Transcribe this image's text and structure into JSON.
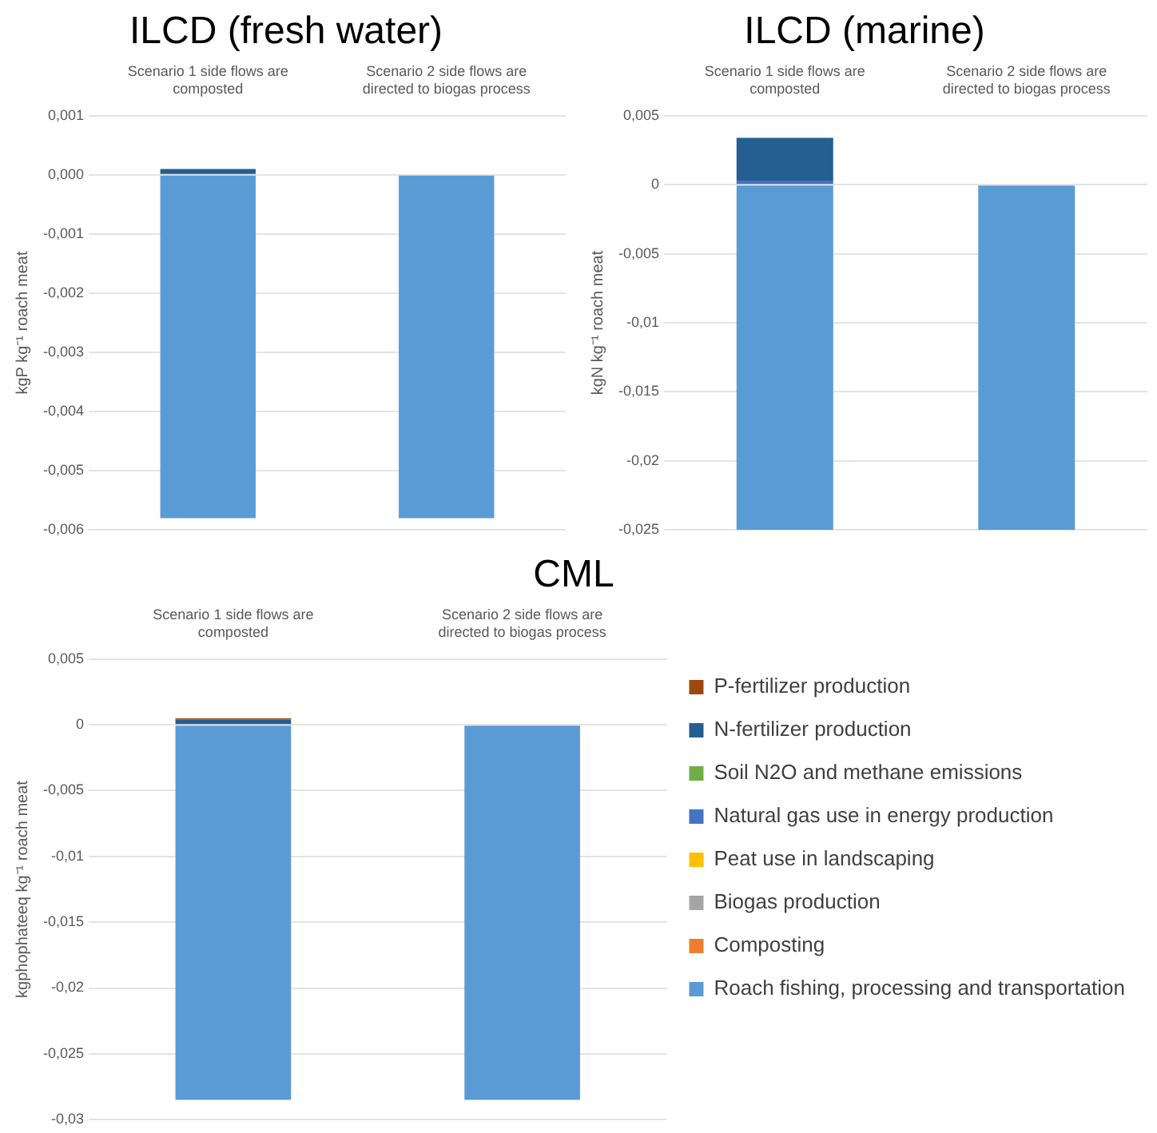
{
  "chart_data": [
    {
      "type": "bar",
      "title": "ILCD (fresh water)",
      "ylabel": "kgP kg⁻¹ roach meat",
      "stacked": true,
      "grid": "y",
      "legend": false,
      "categories": [
        "Scenario 1 side flows are composted",
        "Scenario 2 side flows are directed to biogas process"
      ],
      "ylim": [
        -0.006,
        0.001
      ],
      "yticks": [
        {
          "value": 0.001,
          "label": "0,001"
        },
        {
          "value": 0,
          "label": "0,000"
        },
        {
          "value": -0.001,
          "label": "-0,001"
        },
        {
          "value": -0.002,
          "label": "-0,002"
        },
        {
          "value": -0.003,
          "label": "-0,003"
        },
        {
          "value": -0.004,
          "label": "-0,004"
        },
        {
          "value": -0.005,
          "label": "-0,005"
        },
        {
          "value": -0.006,
          "label": "-0,006"
        }
      ],
      "series": [
        {
          "color": "#5b9bd5",
          "values": [
            -0.0058,
            -0.0058
          ]
        },
        {
          "color": "#ed7d31",
          "values": [
            0,
            0
          ]
        },
        {
          "color": "#a5a5a5",
          "values": [
            0,
            0
          ]
        },
        {
          "color": "#ffc000",
          "values": [
            0,
            0
          ]
        },
        {
          "color": "#4472c4",
          "values": [
            0,
            0
          ]
        },
        {
          "color": "#70ad47",
          "values": [
            0,
            0
          ]
        },
        {
          "color": "#255e91",
          "values": [
            0.0001,
            0
          ]
        },
        {
          "color": "#9e480e",
          "values": [
            0,
            0
          ]
        }
      ]
    },
    {
      "type": "bar",
      "title": "ILCD (marine)",
      "ylabel": "kgN kg⁻¹ roach meat",
      "stacked": true,
      "grid": "y",
      "legend": false,
      "categories": [
        "Scenario 1 side flows are composted",
        "Scenario 2 side flows are directed to biogas process"
      ],
      "ylim": [
        -0.025,
        0.005
      ],
      "yticks": [
        {
          "value": 0.005,
          "label": "0,005"
        },
        0,
        {
          "value": -0.005,
          "label": "-0,005"
        },
        {
          "value": -0.01,
          "label": "-0,01"
        },
        {
          "value": -0.015,
          "label": "-0,015"
        },
        {
          "value": -0.02,
          "label": "-0,02"
        },
        {
          "value": -0.025,
          "label": "-0,025"
        }
      ],
      "series": [
        {
          "color": "#5b9bd5",
          "values": [
            -0.025,
            -0.025
          ]
        },
        {
          "color": "#ed7d31",
          "values": [
            0,
            0
          ]
        },
        {
          "color": "#a5a5a5",
          "values": [
            0,
            0
          ]
        },
        {
          "color": "#ffc000",
          "values": [
            0,
            0
          ]
        },
        {
          "color": "#4472c4",
          "values": [
            0.0003,
            0
          ]
        },
        {
          "color": "#70ad47",
          "values": [
            0,
            0
          ]
        },
        {
          "color": "#255e91",
          "values": [
            0.0031,
            0
          ]
        },
        {
          "color": "#9e480e",
          "values": [
            0,
            0
          ]
        }
      ]
    },
    {
      "type": "bar",
      "title": "CML",
      "ylabel": "kgphophateeq kg⁻¹ roach meat",
      "stacked": true,
      "grid": "y",
      "legend": "right",
      "categories": [
        "Scenario 1 side flows are composted",
        "Scenario 2 side flows are directed to biogas process"
      ],
      "ylim": [
        -0.03,
        0.005
      ],
      "yticks": [
        {
          "value": 0.005,
          "label": "0,005"
        },
        0,
        {
          "value": -0.005,
          "label": "-0,005"
        },
        {
          "value": -0.01,
          "label": "-0,01"
        },
        {
          "value": -0.015,
          "label": "-0,015"
        },
        {
          "value": -0.02,
          "label": "-0,02"
        },
        {
          "value": -0.025,
          "label": "-0,025"
        },
        {
          "value": -0.03,
          "label": "-0,03"
        }
      ],
      "series": [
        {
          "name": "Roach fishing, processing and transportation",
          "color": "#5b9bd5",
          "values": [
            -0.0285,
            -0.0285
          ]
        },
        {
          "name": "Composting",
          "color": "#ed7d31",
          "values": [
            0,
            0
          ]
        },
        {
          "name": "Biogas production",
          "color": "#a5a5a5",
          "values": [
            0,
            0
          ]
        },
        {
          "name": "Peat use in landscaping",
          "color": "#ffc000",
          "values": [
            0,
            0
          ]
        },
        {
          "name": "Natural gas use in energy production",
          "color": "#4472c4",
          "values": [
            0,
            0
          ]
        },
        {
          "name": "Soil N2O and methane emissions",
          "color": "#70ad47",
          "values": [
            0,
            0
          ]
        },
        {
          "name": "N-fertilizer production",
          "color": "#255e91",
          "values": [
            0.0004,
            0
          ]
        },
        {
          "name": "P-fertilizer production",
          "color": "#9e480e",
          "values": [
            0.0001,
            0
          ]
        }
      ]
    }
  ]
}
